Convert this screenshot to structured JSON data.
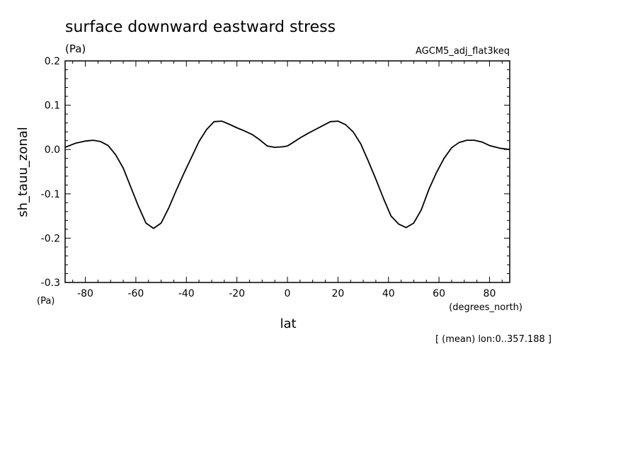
{
  "chart_data": {
    "type": "line",
    "title": "surface downward eastward stress",
    "units": "(Pa)",
    "dataset": "AGCM5_adj_flat3keq",
    "xlabel": "lat",
    "xunits": "(degrees_north)",
    "ylabel": "sh_tauu_zonal",
    "yunits": "(Pa)",
    "note": "[ (mean) lon:0..357.188 ]",
    "xlim": [
      -88,
      88
    ],
    "ylim": [
      -0.3,
      0.2
    ],
    "xticks": [
      "-80",
      "-60",
      "-40",
      "-20",
      "0",
      "20",
      "40",
      "60",
      "80"
    ],
    "yticks": [
      "0.2",
      "0.1",
      "0.0",
      "-0.1",
      "-0.2",
      "-0.3"
    ],
    "grid": false,
    "series": [
      {
        "x": [
          -88,
          -84,
          -80,
          -77,
          -74,
          -71,
          -68,
          -65,
          -62,
          -59,
          -56,
          -53,
          -50,
          -47,
          -44,
          -41,
          -38,
          -35,
          -32,
          -29,
          -26,
          -23,
          -20,
          -17,
          -14,
          -11,
          -8,
          -5,
          -2,
          0,
          2,
          5,
          8,
          11,
          14,
          17,
          20,
          23,
          26,
          29,
          32,
          35,
          38,
          41,
          44,
          47,
          50,
          53,
          56,
          59,
          62,
          65,
          68,
          71,
          74,
          77,
          80,
          84,
          88
        ],
        "y": [
          0.005,
          0.014,
          0.019,
          0.021,
          0.018,
          0.009,
          -0.012,
          -0.042,
          -0.085,
          -0.128,
          -0.166,
          -0.178,
          -0.166,
          -0.132,
          -0.092,
          -0.054,
          -0.018,
          0.018,
          0.045,
          0.063,
          0.064,
          0.057,
          0.049,
          0.042,
          0.034,
          0.022,
          0.008,
          0.005,
          0.006,
          0.008,
          0.015,
          0.026,
          0.036,
          0.045,
          0.054,
          0.063,
          0.064,
          0.056,
          0.04,
          0.013,
          -0.026,
          -0.067,
          -0.11,
          -0.15,
          -0.168,
          -0.176,
          -0.166,
          -0.136,
          -0.09,
          -0.052,
          -0.02,
          0.004,
          0.016,
          0.021,
          0.021,
          0.017,
          0.009,
          0.003,
          0.0
        ]
      }
    ]
  }
}
